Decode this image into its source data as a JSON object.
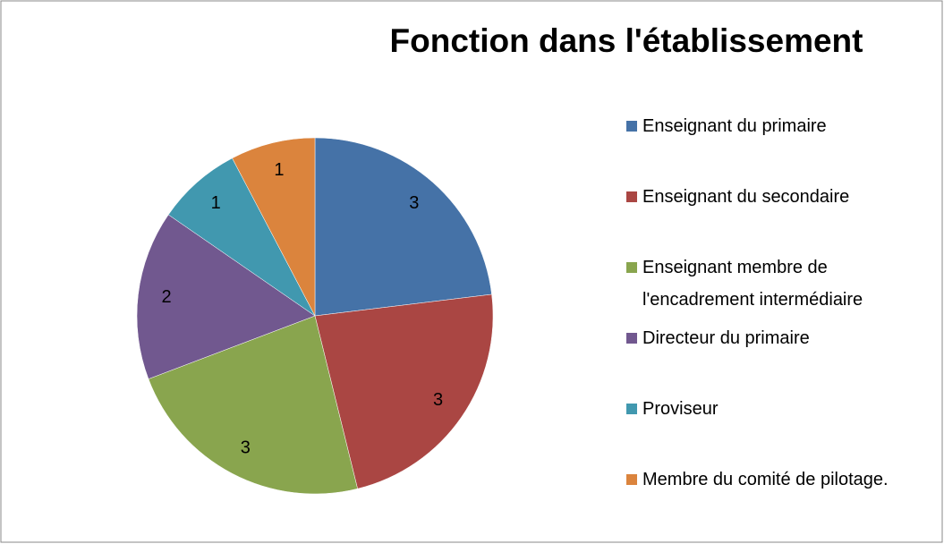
{
  "chart_data": {
    "type": "pie",
    "title": "Fonction dans l'établissement",
    "categories": [
      "Enseignant du primaire",
      "Enseignant du secondaire",
      "Enseignant membre de l'encadrement intermédiaire",
      "Directeur du primaire",
      "Proviseur",
      "Membre du comité de pilotage."
    ],
    "values": [
      3,
      3,
      3,
      2,
      1,
      1
    ],
    "colors": [
      "#4572a7",
      "#aa4643",
      "#89a54e",
      "#71588f",
      "#4198af",
      "#db843d"
    ],
    "legend": "right"
  }
}
